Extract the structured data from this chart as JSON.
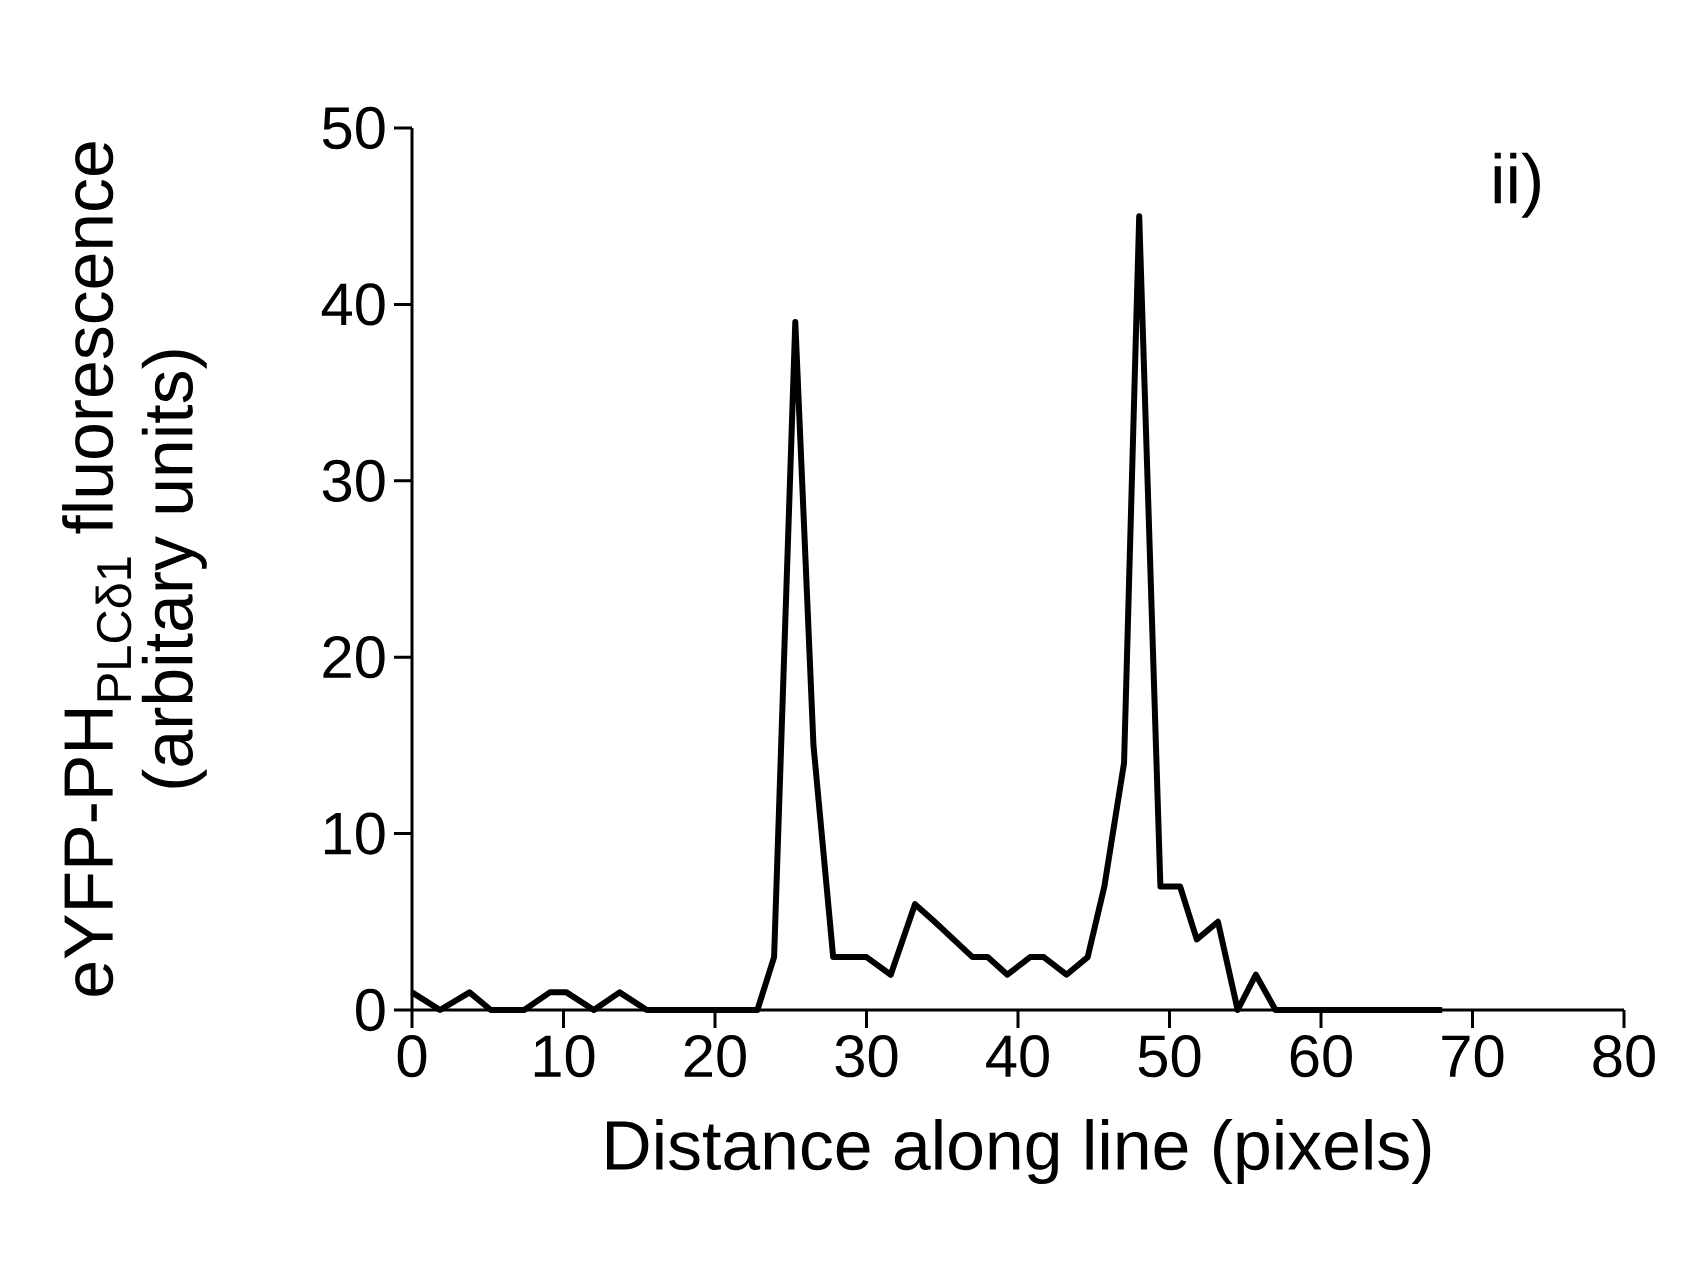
{
  "chart_data": {
    "type": "line",
    "xlabel": "Distance along line (pixels)",
    "ylabel": "eYFP-PH$_{PLCδ1}$ fluorescence\n(arbitary units)",
    "annotations": [
      "ii)"
    ],
    "series": [
      {
        "color": "#000000",
        "x": [
          0,
          1.85,
          3.8,
          5.2,
          7.4,
          9.1,
          10.2,
          12.0,
          13.7,
          15.5,
          22.8,
          23.9,
          25.3,
          26.5,
          27.8,
          30.0,
          31.6,
          33.2,
          34.5,
          37.0,
          38.0,
          39.3,
          40.8,
          41.7,
          43.2,
          44.6,
          45.7,
          47.0,
          48.0,
          49.4,
          50.7,
          51.8,
          53.2,
          54.5,
          55.7,
          57.0,
          68
        ],
        "values": [
          1,
          0,
          1,
          0,
          0,
          1,
          1,
          0,
          1,
          0,
          0,
          3,
          39,
          15,
          3,
          3,
          2,
          6,
          5,
          3,
          3,
          2,
          3,
          3,
          2,
          3,
          7,
          14,
          45,
          7,
          7,
          4,
          5,
          0,
          2,
          0,
          0
        ]
      }
    ],
    "xlim": [
      0,
      80
    ],
    "xticks": [
      0,
      10,
      20,
      30,
      40,
      50,
      60,
      70,
      80
    ],
    "ylim": [
      0,
      50
    ],
    "yticks": [
      0,
      10,
      20,
      30,
      40,
      50
    ],
    "grid": false,
    "marker": "none",
    "line_style": "solid"
  }
}
